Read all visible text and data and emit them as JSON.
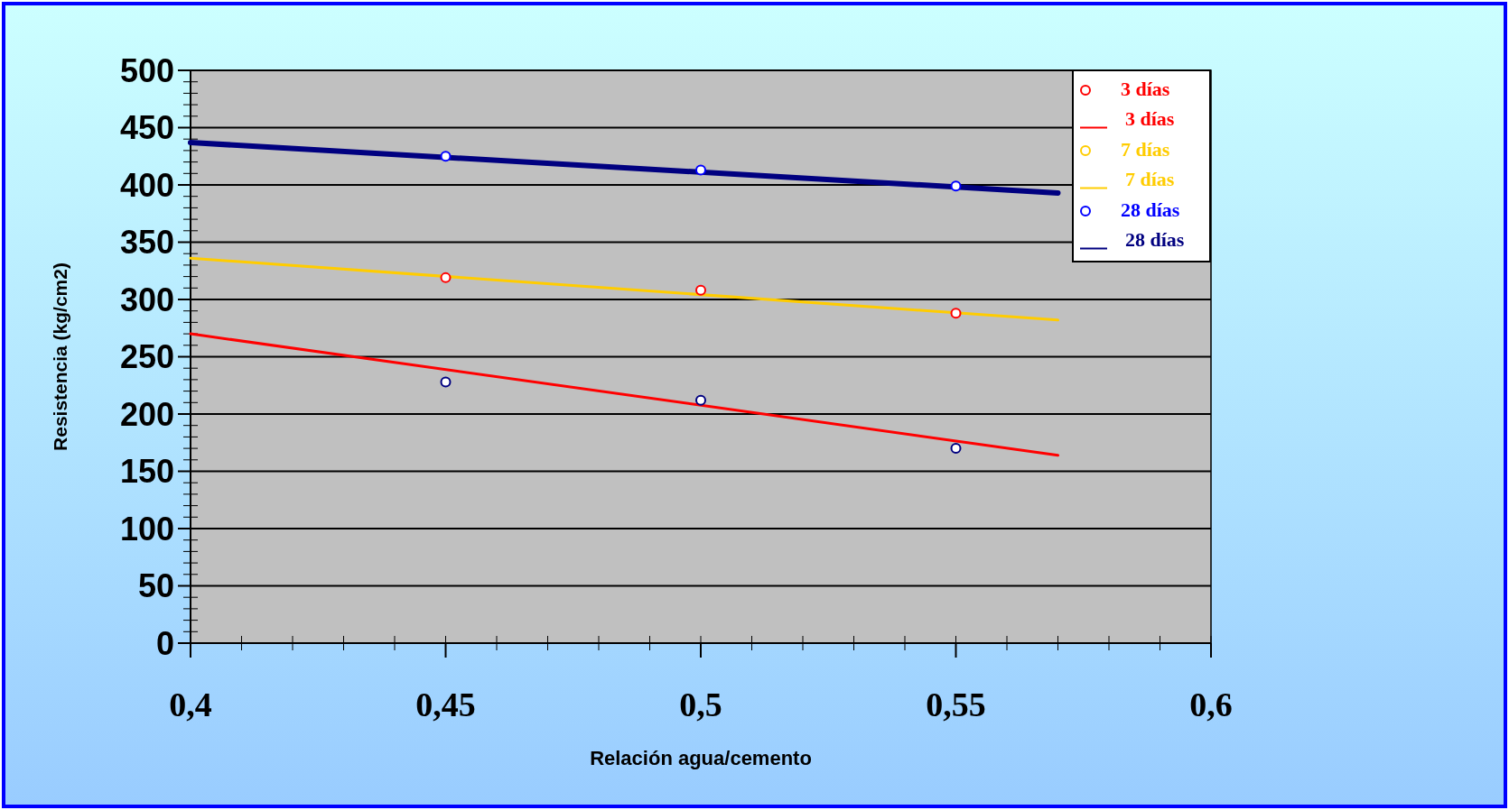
{
  "chart_data": {
    "type": "scatter",
    "xlabel": "Relación agua/cemento",
    "ylabel": "Resistencia (kg/cm2)",
    "xlim": [
      0.4,
      0.6
    ],
    "xticks": [
      {
        "value": 0.4,
        "label": "0,4"
      },
      {
        "value": 0.45,
        "label": "0,45"
      },
      {
        "value": 0.5,
        "label": "0,5"
      },
      {
        "value": 0.55,
        "label": "0,55"
      },
      {
        "value": 0.6,
        "label": "0,6"
      }
    ],
    "ylim": [
      0,
      500
    ],
    "yticks": [
      0,
      50,
      100,
      150,
      200,
      250,
      300,
      350,
      400,
      450,
      500
    ],
    "grid": "y",
    "legend": "top right",
    "series": [
      {
        "name": "3 días",
        "color": "#ff0000",
        "x": [
          0.45,
          0.5,
          0.55
        ],
        "values": [
          319,
          308,
          288
        ]
      },
      {
        "name": "3 días",
        "type": "line",
        "color": "#ff0000",
        "x": [
          0.4,
          0.57
        ],
        "values": [
          270,
          164
        ]
      },
      {
        "name": "7 días",
        "color": "#ffcc00",
        "values": [
          null,
          null,
          null
        ]
      },
      {
        "name": "7 días",
        "type": "line",
        "color": "#ffcc00",
        "x": [
          0.4,
          0.57
        ],
        "values": [
          336,
          282
        ]
      },
      {
        "name": "28 días",
        "color": "#0000ff",
        "x": [
          0.45,
          0.5,
          0.55
        ],
        "values": [
          425,
          413,
          399
        ]
      },
      {
        "name": "28 días",
        "type": "line",
        "color": "#000080",
        "x": [
          0.4,
          0.57
        ],
        "values": [
          437,
          393
        ]
      },
      {
        "color": "#000080",
        "x": [
          0.45,
          0.5,
          0.55
        ],
        "values": [
          228,
          212,
          170
        ]
      }
    ]
  }
}
